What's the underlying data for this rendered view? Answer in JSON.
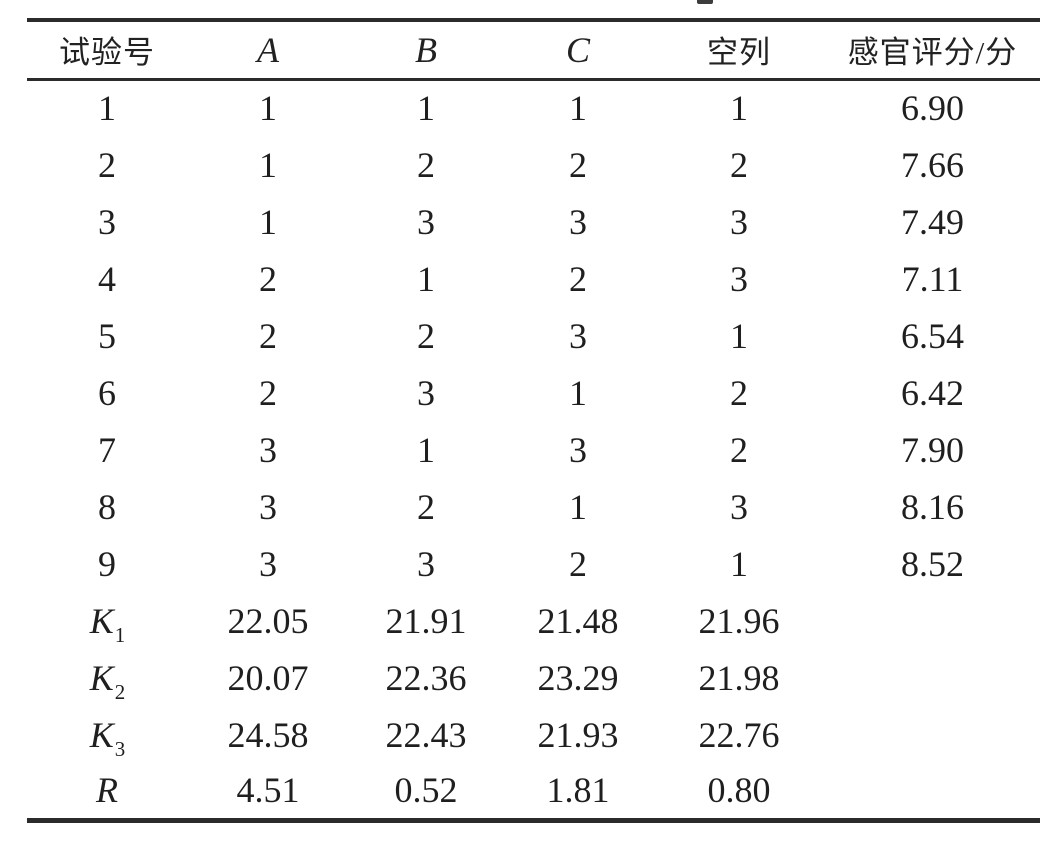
{
  "page": {
    "background": "#ffffff",
    "text_color": "#1f1f1f",
    "rule_color": "#2b2b2b"
  },
  "table": {
    "columns": [
      {
        "label": "试验号"
      },
      {
        "label": "A"
      },
      {
        "label": "B"
      },
      {
        "label": "C"
      },
      {
        "label": "空列"
      },
      {
        "label": "感官评分/分"
      }
    ],
    "rows": [
      [
        "1",
        "1",
        "1",
        "1",
        "1",
        "6.90"
      ],
      [
        "2",
        "1",
        "2",
        "2",
        "2",
        "7.66"
      ],
      [
        "3",
        "1",
        "3",
        "3",
        "3",
        "7.49"
      ],
      [
        "4",
        "2",
        "1",
        "2",
        "3",
        "7.11"
      ],
      [
        "5",
        "2",
        "2",
        "3",
        "1",
        "6.54"
      ],
      [
        "6",
        "2",
        "3",
        "1",
        "2",
        "6.42"
      ],
      [
        "7",
        "3",
        "1",
        "3",
        "2",
        "7.90"
      ],
      [
        "8",
        "3",
        "2",
        "1",
        "3",
        "8.16"
      ],
      [
        "9",
        "3",
        "3",
        "2",
        "1",
        "8.52"
      ]
    ],
    "stat_rows": [
      {
        "base": "K",
        "sub": "1",
        "values": [
          "22.05",
          "21.91",
          "21.48",
          "21.96",
          ""
        ]
      },
      {
        "base": "K",
        "sub": "2",
        "values": [
          "20.07",
          "22.36",
          "23.29",
          "21.98",
          ""
        ]
      },
      {
        "base": "K",
        "sub": "3",
        "values": [
          "24.58",
          "22.43",
          "21.93",
          "22.76",
          ""
        ]
      },
      {
        "base": "R",
        "sub": "",
        "values": [
          "4.51",
          "0.52",
          "1.81",
          "0.80",
          ""
        ]
      }
    ]
  }
}
